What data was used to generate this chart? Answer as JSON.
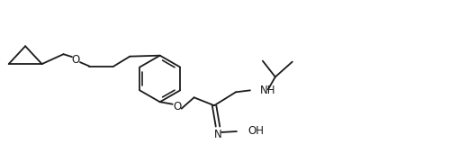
{
  "bg_color": "#ffffff",
  "line_color": "#1a1a1a",
  "text_color": "#1a1a1a",
  "line_width": 1.3,
  "font_size": 8.5,
  "fig_width": 5.0,
  "fig_height": 1.7,
  "dpi": 100,
  "xlim": [
    0,
    10
  ],
  "ylim": [
    0,
    3.4
  ]
}
